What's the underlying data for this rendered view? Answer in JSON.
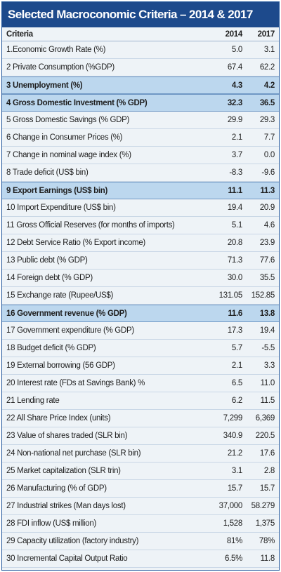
{
  "title": "Selected Macroconomic Criteria – 2014 & 2017",
  "table": {
    "header": [
      "Criteria",
      "2014",
      "2017"
    ],
    "highlighted_rows": [
      2,
      3,
      8,
      15
    ],
    "rows": [
      [
        "1.Economic Growth Rate (%)",
        "5.0",
        "3.1"
      ],
      [
        "2 Private Consumption (%GDP)",
        "67.4",
        "62.2"
      ],
      [
        "3 Unemployment (%)",
        "4.3",
        "4.2"
      ],
      [
        "4 Gross Domestic Investment (% GDP)",
        "32.3",
        "36.5"
      ],
      [
        "5 Gross Domestic Savings (% GDP)",
        "29.9",
        "29.3"
      ],
      [
        "6 Change in Consumer Prices (%)",
        "2.1",
        "7.7"
      ],
      [
        "7 Change in nominal wage index (%)",
        "3.7",
        "0.0"
      ],
      [
        "8 Trade deficit (US$ bin)",
        "-8.3",
        "-9.6"
      ],
      [
        "9 Export Earnings (US$ bin)",
        "11.1",
        "11.3"
      ],
      [
        "10 Import Expenditure (US$ bin)",
        "19.4",
        "20.9"
      ],
      [
        "11 Gross Official Reserves (for months of imports)",
        "5.1",
        "4.6"
      ],
      [
        "12 Debt Service Ratio (% Export income)",
        "20.8",
        "23.9"
      ],
      [
        "13 Public debt (% GDP)",
        "71.3",
        "77.6"
      ],
      [
        "14 Foreign debt (% GDP)",
        "30.0",
        "35.5"
      ],
      [
        "15 Exchange rate (Rupee/US$)",
        "131.05",
        "152.85"
      ],
      [
        "16 Government revenue (% GDP)",
        "11.6",
        "13.8"
      ],
      [
        "17 Government expenditure (% GDP)",
        "17.3",
        "19.4"
      ],
      [
        "18 Budget deficit (% GDP)",
        "5.7",
        "-5.5"
      ],
      [
        "19 External borrowing (56 GDP)",
        "2.1",
        "3.3"
      ],
      [
        "20 Interest rate (FDs at Savings Bank) %",
        "6.5",
        "11.0"
      ],
      [
        "21 Lending rate",
        "6.2",
        "11.5"
      ],
      [
        "22 All Share Price Index (units)",
        "7,299",
        "6,369"
      ],
      [
        "23 Value of shares traded (SLR bin)",
        "340.9",
        "220.5"
      ],
      [
        "24 Non-national net purchase (SLR  bin)",
        "21.2",
        "17.6"
      ],
      [
        "25 Market capitalization (SLR trin)",
        "3.1",
        "2.8"
      ],
      [
        "26 Manufacturing (% of GDP)",
        "15.7",
        "15.7"
      ],
      [
        "27 Industrial strikes (Man days lost)",
        "37,000",
        "58.279"
      ],
      [
        "28 FDI  inflow (US$ million)",
        "1,528",
        "1,375"
      ],
      [
        "29 Capacity utilization (factory industry)",
        "81%",
        "78%"
      ],
      [
        "30 Incremental Capital Output Ratio",
        "6.5%",
        "11.8"
      ]
    ]
  }
}
